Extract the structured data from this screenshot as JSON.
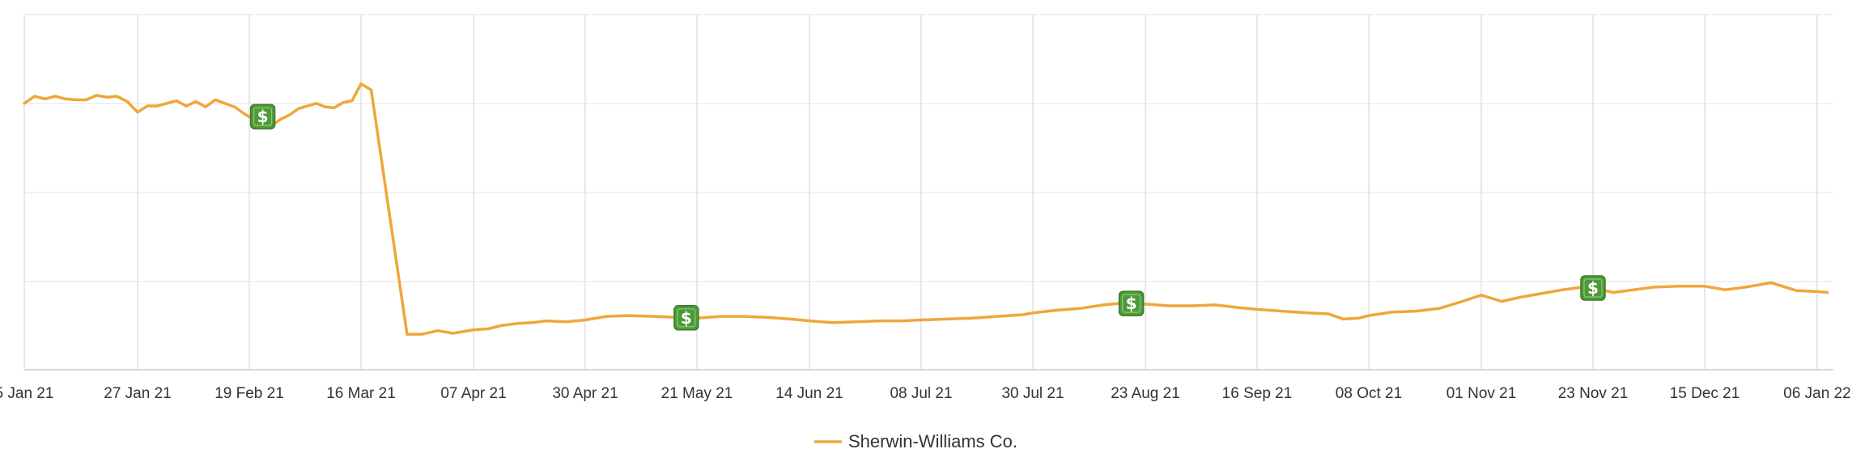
{
  "chart_data": {
    "type": "line",
    "title": "",
    "xlabel": "",
    "ylabel": "",
    "y_tick_labels_visible": false,
    "grid": true,
    "legend_placement": "bottom-center",
    "x_tick_labels": [
      "5 Jan 21",
      "27 Jan 21",
      "19 Feb 21",
      "16 Mar 21",
      "07 Apr 21",
      "30 Apr 21",
      "21 May 21",
      "14 Jun 21",
      "08 Jul 21",
      "30 Jul 21",
      "23 Aug 21",
      "16 Sep 21",
      "08 Oct 21",
      "01 Nov 21",
      "23 Nov 21",
      "15 Dec 21",
      "06 Jan 22"
    ],
    "ylim": [
      0,
      4
    ],
    "series": [
      {
        "name": "Sherwin-Williams Co.",
        "color": "#F0A63A",
        "points": [
          [
            "2021-01-05",
            3.0
          ],
          [
            "2021-01-07",
            3.08
          ],
          [
            "2021-01-09",
            3.05
          ],
          [
            "2021-01-11",
            3.08
          ],
          [
            "2021-01-13",
            3.05
          ],
          [
            "2021-01-15",
            3.04
          ],
          [
            "2021-01-17",
            3.04
          ],
          [
            "2021-01-19",
            3.09
          ],
          [
            "2021-01-21",
            3.07
          ],
          [
            "2021-01-23",
            3.08
          ],
          [
            "2021-01-25",
            3.02
          ],
          [
            "2021-01-27",
            2.9
          ],
          [
            "2021-01-29",
            2.97
          ],
          [
            "2021-01-31",
            2.97
          ],
          [
            "2021-02-02",
            3.0
          ],
          [
            "2021-02-04",
            3.03
          ],
          [
            "2021-02-06",
            2.97
          ],
          [
            "2021-02-08",
            3.02
          ],
          [
            "2021-02-10",
            2.96
          ],
          [
            "2021-02-12",
            3.04
          ],
          [
            "2021-02-14",
            3.0
          ],
          [
            "2021-02-16",
            2.96
          ],
          [
            "2021-02-18",
            2.88
          ],
          [
            "2021-02-20",
            2.82
          ],
          [
            "2021-02-22",
            2.85
          ],
          [
            "2021-02-24",
            2.75
          ],
          [
            "2021-02-26",
            2.82
          ],
          [
            "2021-02-28",
            2.87
          ],
          [
            "2021-03-02",
            2.94
          ],
          [
            "2021-03-04",
            2.97
          ],
          [
            "2021-03-06",
            3.0
          ],
          [
            "2021-03-08",
            2.96
          ],
          [
            "2021-03-10",
            2.95
          ],
          [
            "2021-03-12",
            3.01
          ],
          [
            "2021-03-14",
            3.03
          ],
          [
            "2021-03-16",
            3.22
          ],
          [
            "2021-03-18",
            3.15
          ],
          [
            "2021-03-25",
            0.4
          ],
          [
            "2021-03-28",
            0.4
          ],
          [
            "2021-03-31",
            0.44
          ],
          [
            "2021-04-03",
            0.41
          ],
          [
            "2021-04-07",
            0.45
          ],
          [
            "2021-04-10",
            0.46
          ],
          [
            "2021-04-13",
            0.5
          ],
          [
            "2021-04-16",
            0.52
          ],
          [
            "2021-04-19",
            0.53
          ],
          [
            "2021-04-22",
            0.55
          ],
          [
            "2021-04-26",
            0.54
          ],
          [
            "2021-04-30",
            0.56
          ],
          [
            "2021-05-04",
            0.6
          ],
          [
            "2021-05-08",
            0.61
          ],
          [
            "2021-05-13",
            0.6
          ],
          [
            "2021-05-17",
            0.59
          ],
          [
            "2021-05-21",
            0.58
          ],
          [
            "2021-05-26",
            0.6
          ],
          [
            "2021-05-31",
            0.6
          ],
          [
            "2021-06-05",
            0.59
          ],
          [
            "2021-06-10",
            0.57
          ],
          [
            "2021-06-14",
            0.55
          ],
          [
            "2021-06-19",
            0.53
          ],
          [
            "2021-06-24",
            0.54
          ],
          [
            "2021-06-29",
            0.55
          ],
          [
            "2021-07-04",
            0.55
          ],
          [
            "2021-07-08",
            0.56
          ],
          [
            "2021-07-13",
            0.57
          ],
          [
            "2021-07-18",
            0.58
          ],
          [
            "2021-07-23",
            0.6
          ],
          [
            "2021-07-28",
            0.62
          ],
          [
            "2021-07-30",
            0.64
          ],
          [
            "2021-08-04",
            0.67
          ],
          [
            "2021-08-09",
            0.69
          ],
          [
            "2021-08-14",
            0.73
          ],
          [
            "2021-08-18",
            0.75
          ],
          [
            "2021-08-23",
            0.74
          ],
          [
            "2021-08-28",
            0.72
          ],
          [
            "2021-09-02",
            0.72
          ],
          [
            "2021-09-07",
            0.73
          ],
          [
            "2021-09-12",
            0.7
          ],
          [
            "2021-09-16",
            0.68
          ],
          [
            "2021-09-21",
            0.66
          ],
          [
            "2021-09-26",
            0.64
          ],
          [
            "2021-09-30",
            0.63
          ],
          [
            "2021-10-03",
            0.57
          ],
          [
            "2021-10-06",
            0.58
          ],
          [
            "2021-10-08",
            0.61
          ],
          [
            "2021-10-13",
            0.65
          ],
          [
            "2021-10-18",
            0.66
          ],
          [
            "2021-10-23",
            0.69
          ],
          [
            "2021-10-28",
            0.77
          ],
          [
            "2021-11-01",
            0.84
          ],
          [
            "2021-11-05",
            0.77
          ],
          [
            "2021-11-09",
            0.82
          ],
          [
            "2021-11-13",
            0.86
          ],
          [
            "2021-11-17",
            0.9
          ],
          [
            "2021-11-21",
            0.93
          ],
          [
            "2021-11-23",
            0.92
          ],
          [
            "2021-11-27",
            0.87
          ],
          [
            "2021-12-01",
            0.9
          ],
          [
            "2021-12-05",
            0.93
          ],
          [
            "2021-12-10",
            0.94
          ],
          [
            "2021-12-15",
            0.94
          ],
          [
            "2021-12-19",
            0.9
          ],
          [
            "2021-12-23",
            0.93
          ],
          [
            "2021-12-28",
            0.98
          ],
          [
            "2022-01-02",
            0.89
          ],
          [
            "2022-01-06",
            0.88
          ],
          [
            "2022-01-08",
            0.87
          ]
        ]
      }
    ],
    "dividend_markers": {
      "icon": "dollar-icon",
      "glyph": "$",
      "color": "#4E9A38",
      "dates": [
        "2021-02-22",
        "2021-05-19",
        "2021-08-20",
        "2021-11-23"
      ]
    }
  }
}
